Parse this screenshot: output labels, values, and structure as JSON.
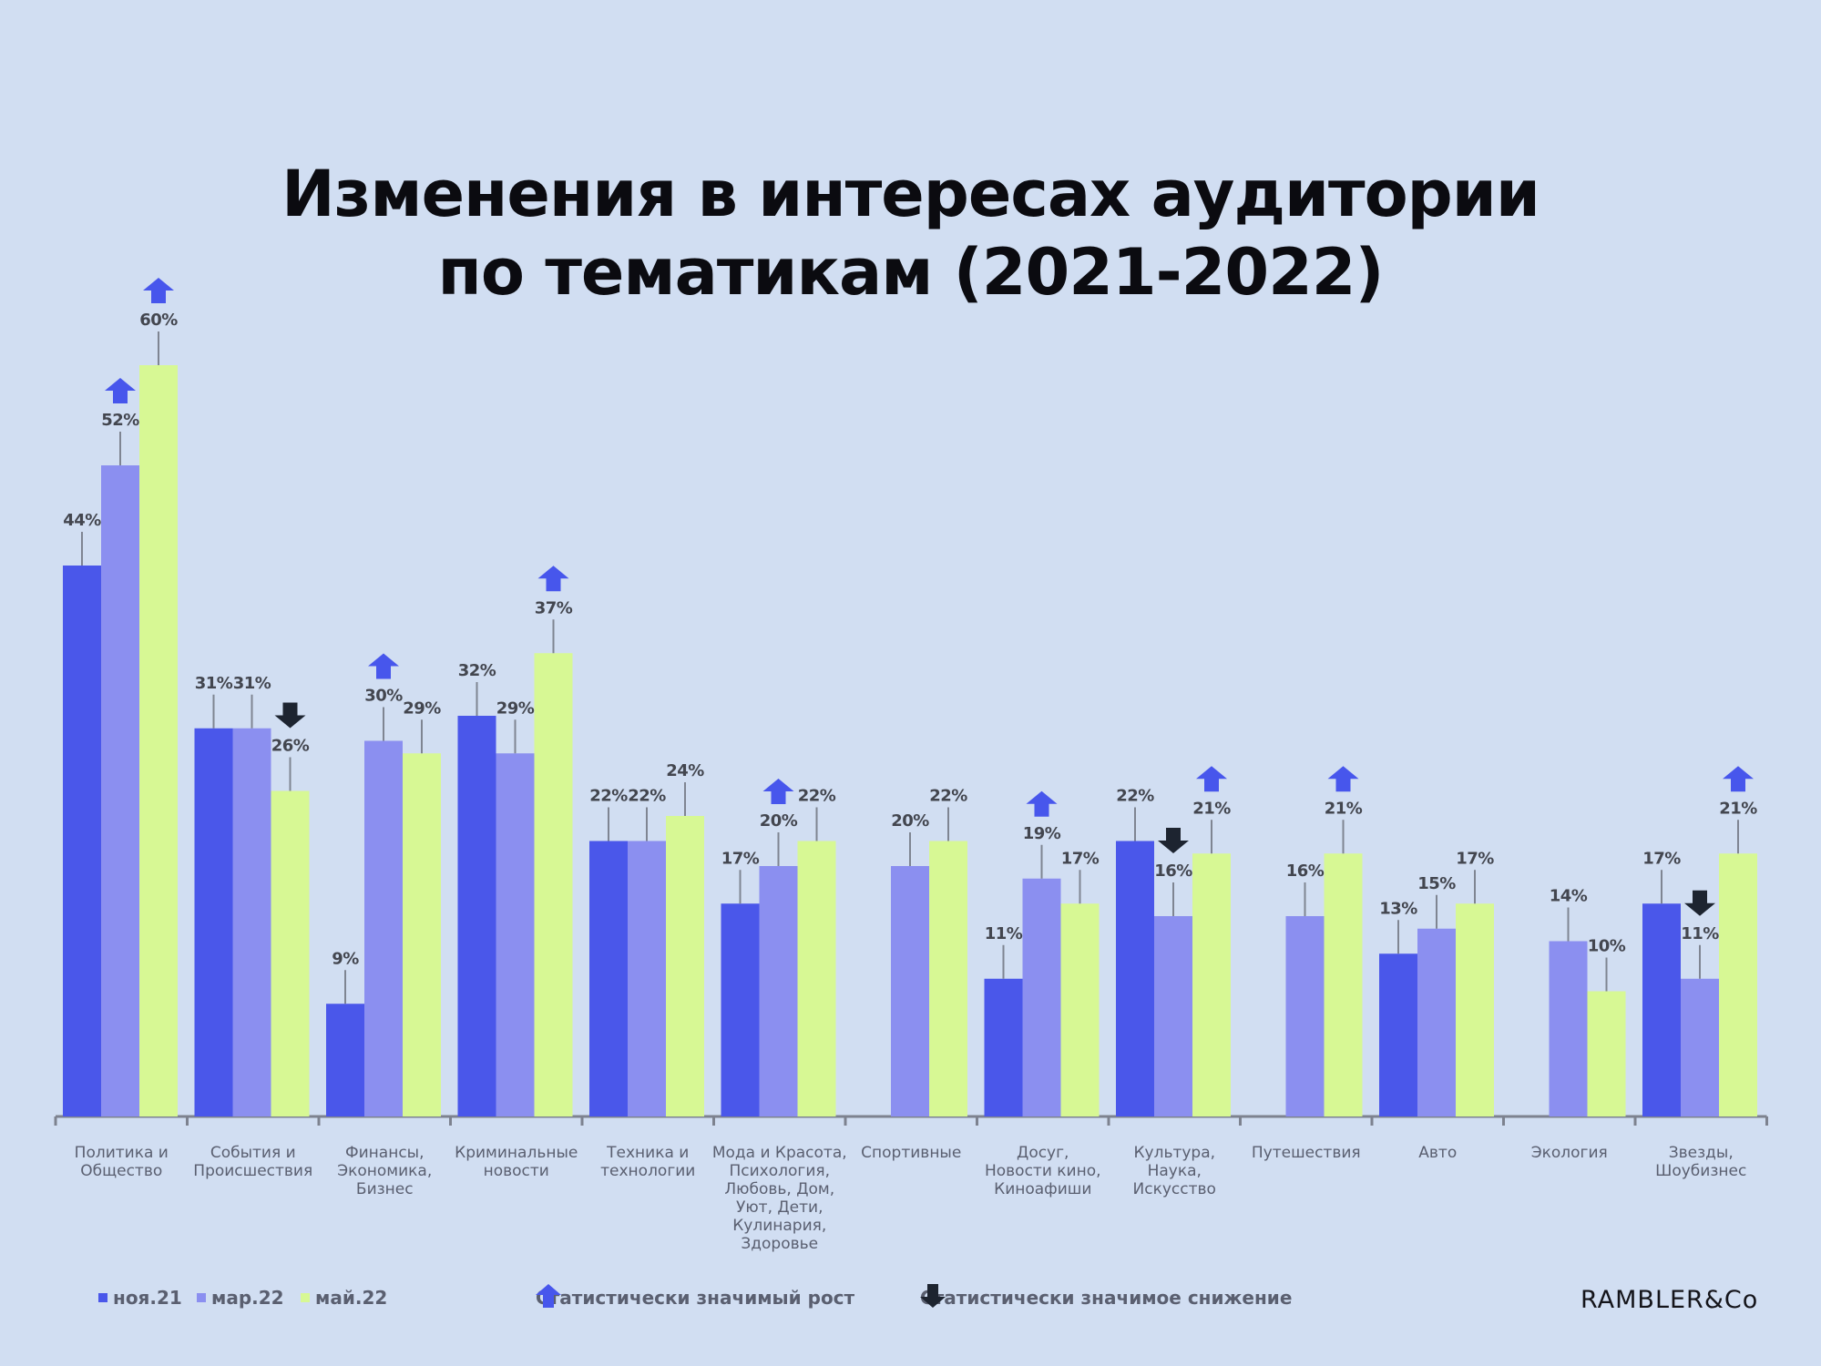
{
  "title": {
    "line1": "Изменения в интересах аудитории",
    "line2": "по тематикам (2021-2022)"
  },
  "colors": {
    "background": "#d1def2",
    "nov21": "#4a57ea",
    "mar22": "#8b8ff0",
    "may22": "#d7f894",
    "arrow_up": "#4756ec",
    "arrow_down": "#1d2430",
    "axis": "#7d828f",
    "value_label": "#43464f",
    "category_label": "#5a5f70"
  },
  "legend": {
    "nov21": "ноя.21",
    "mar22": "мар.22",
    "may22": "май.22",
    "up": "Статистически значимый рост",
    "down": "Статистически значимое снижение"
  },
  "brand": "RAMBLER&Co",
  "chart_data": {
    "type": "bar",
    "ylim": [
      0,
      60
    ],
    "grid": false,
    "legend_placement": "bottom",
    "categories": [
      [
        "Политика и",
        "Общество"
      ],
      [
        "События и",
        "Происшествия"
      ],
      [
        "Финансы,",
        "Экономика,",
        "Бизнес"
      ],
      [
        "Криминальные",
        "новости"
      ],
      [
        "Техника и",
        "технологии"
      ],
      [
        "Мода и Красота,",
        "Психология,",
        "Любовь, Дом,",
        "Уют, Дети,",
        "Кулинария,",
        "Здоровье"
      ],
      [
        "Спортивные"
      ],
      [
        "Досуг,",
        "Новости кино,",
        "Киноафиши"
      ],
      [
        "Культура,",
        "Наука,",
        "Искусство"
      ],
      [
        "Путешествия"
      ],
      [
        "Авто"
      ],
      [
        "Экология"
      ],
      [
        "Звезды,",
        "Шоубизнес"
      ]
    ],
    "series": [
      {
        "name": "ноя.21",
        "values": [
          44,
          31,
          9,
          32,
          22,
          17,
          null,
          11,
          22,
          null,
          13,
          null,
          17
        ]
      },
      {
        "name": "мар.22",
        "values": [
          52,
          31,
          30,
          29,
          22,
          20,
          20,
          19,
          16,
          16,
          15,
          14,
          11
        ]
      },
      {
        "name": "май.22",
        "values": [
          60,
          26,
          29,
          37,
          24,
          22,
          22,
          17,
          21,
          21,
          17,
          10,
          21
        ]
      }
    ],
    "value_labels": [
      [
        "44%",
        "52%",
        "60%"
      ],
      [
        "31%",
        "31%",
        "26%"
      ],
      [
        "9%",
        "30%",
        "29%"
      ],
      [
        "32%",
        "29%",
        "37%"
      ],
      [
        "22%",
        "22%",
        "24%"
      ],
      [
        "17%",
        "20%",
        "22%"
      ],
      [
        null,
        "20%",
        "22%"
      ],
      [
        "11%",
        "19%",
        "17%"
      ],
      [
        "22%",
        "16%",
        "21%"
      ],
      [
        null,
        "16%",
        "21%"
      ],
      [
        "13%",
        "15%",
        "17%"
      ],
      [
        null,
        "14%",
        "10%"
      ],
      [
        "17%",
        "11%",
        "21%"
      ]
    ],
    "significance": [
      [
        null,
        "up",
        "up"
      ],
      [
        null,
        null,
        "down"
      ],
      [
        null,
        "up",
        null
      ],
      [
        null,
        null,
        "up"
      ],
      [
        null,
        null,
        null
      ],
      [
        null,
        "up",
        null
      ],
      [
        null,
        null,
        null
      ],
      [
        null,
        "up",
        null
      ],
      [
        null,
        "down",
        "up"
      ],
      [
        null,
        null,
        "up"
      ],
      [
        null,
        null,
        null
      ],
      [
        null,
        null,
        null
      ],
      [
        null,
        "down",
        "up"
      ]
    ]
  }
}
